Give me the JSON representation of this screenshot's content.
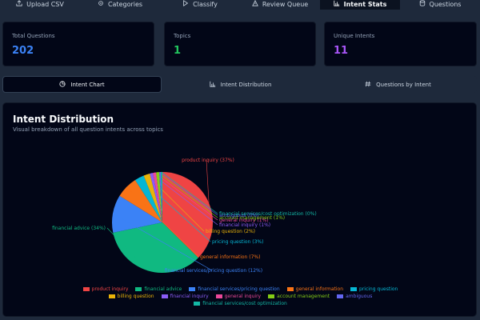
{
  "nav": {
    "tabs": [
      {
        "label": "Upload CSV",
        "icon": "upload-icon",
        "active": false
      },
      {
        "label": "Categories",
        "icon": "gear-icon",
        "active": false
      },
      {
        "label": "Classify",
        "icon": "play-icon",
        "active": false
      },
      {
        "label": "Review Queue",
        "icon": "warning-icon",
        "active": false
      },
      {
        "label": "Intent Stats",
        "icon": "bar-chart-icon",
        "active": true
      },
      {
        "label": "Questions",
        "icon": "database-icon",
        "active": false
      }
    ]
  },
  "stats": [
    {
      "label": "Total Questions",
      "value": "202",
      "color": "#3b82f6"
    },
    {
      "label": "Topics",
      "value": "1",
      "color": "#22c55e"
    },
    {
      "label": "Unique Intents",
      "value": "11",
      "color": "#a855f7"
    }
  ],
  "subtabs": [
    {
      "label": "Intent Chart",
      "icon": "pie-chart-icon",
      "active": true
    },
    {
      "label": "Intent Distribution",
      "icon": "bar-chart-icon",
      "active": false
    },
    {
      "label": "Questions by Intent",
      "icon": "hash-icon",
      "active": false
    }
  ],
  "panel": {
    "title": "Intent Distribution",
    "subtitle": "Visual breakdown of all question intents across topics"
  },
  "chart_data": {
    "type": "pie",
    "slices": [
      {
        "label": "product inquiry",
        "percent": 37,
        "display": "product inquiry (37%)",
        "color": "#ef4444"
      },
      {
        "label": "financial advice",
        "percent": 34,
        "display": "financial advice (34%)",
        "color": "#10b981"
      },
      {
        "label": "financial services/pricing question",
        "percent": 12,
        "display": "financial services/pricing question (12%)",
        "color": "#3b82f6"
      },
      {
        "label": "general information",
        "percent": 7,
        "display": "general information (7%)",
        "color": "#f97316"
      },
      {
        "label": "pricing question",
        "percent": 3,
        "display": "pricing question (3%)",
        "color": "#06b6d4"
      },
      {
        "label": "billing question",
        "percent": 2,
        "display": "billing question (2%)",
        "color": "#eab308"
      },
      {
        "label": "financial inquiry",
        "percent": 1,
        "display": "financial inquiry (1%)",
        "color": "#8b5cf6"
      },
      {
        "label": "general inquiry",
        "percent": 1,
        "display": "general inquiry (1%)",
        "color": "#ec4899"
      },
      {
        "label": "account management",
        "percent": 1,
        "display": "account management (1%)",
        "color": "#84cc16"
      },
      {
        "label": "ambiguous",
        "percent": 0.5,
        "display": "ambiguous (0%)",
        "color": "#6366f1"
      },
      {
        "label": "financial services/cost optimization",
        "percent": 0.5,
        "display": "financial services/cost optimization (0%)",
        "color": "#14b8a6"
      }
    ],
    "legend": "bottom"
  }
}
